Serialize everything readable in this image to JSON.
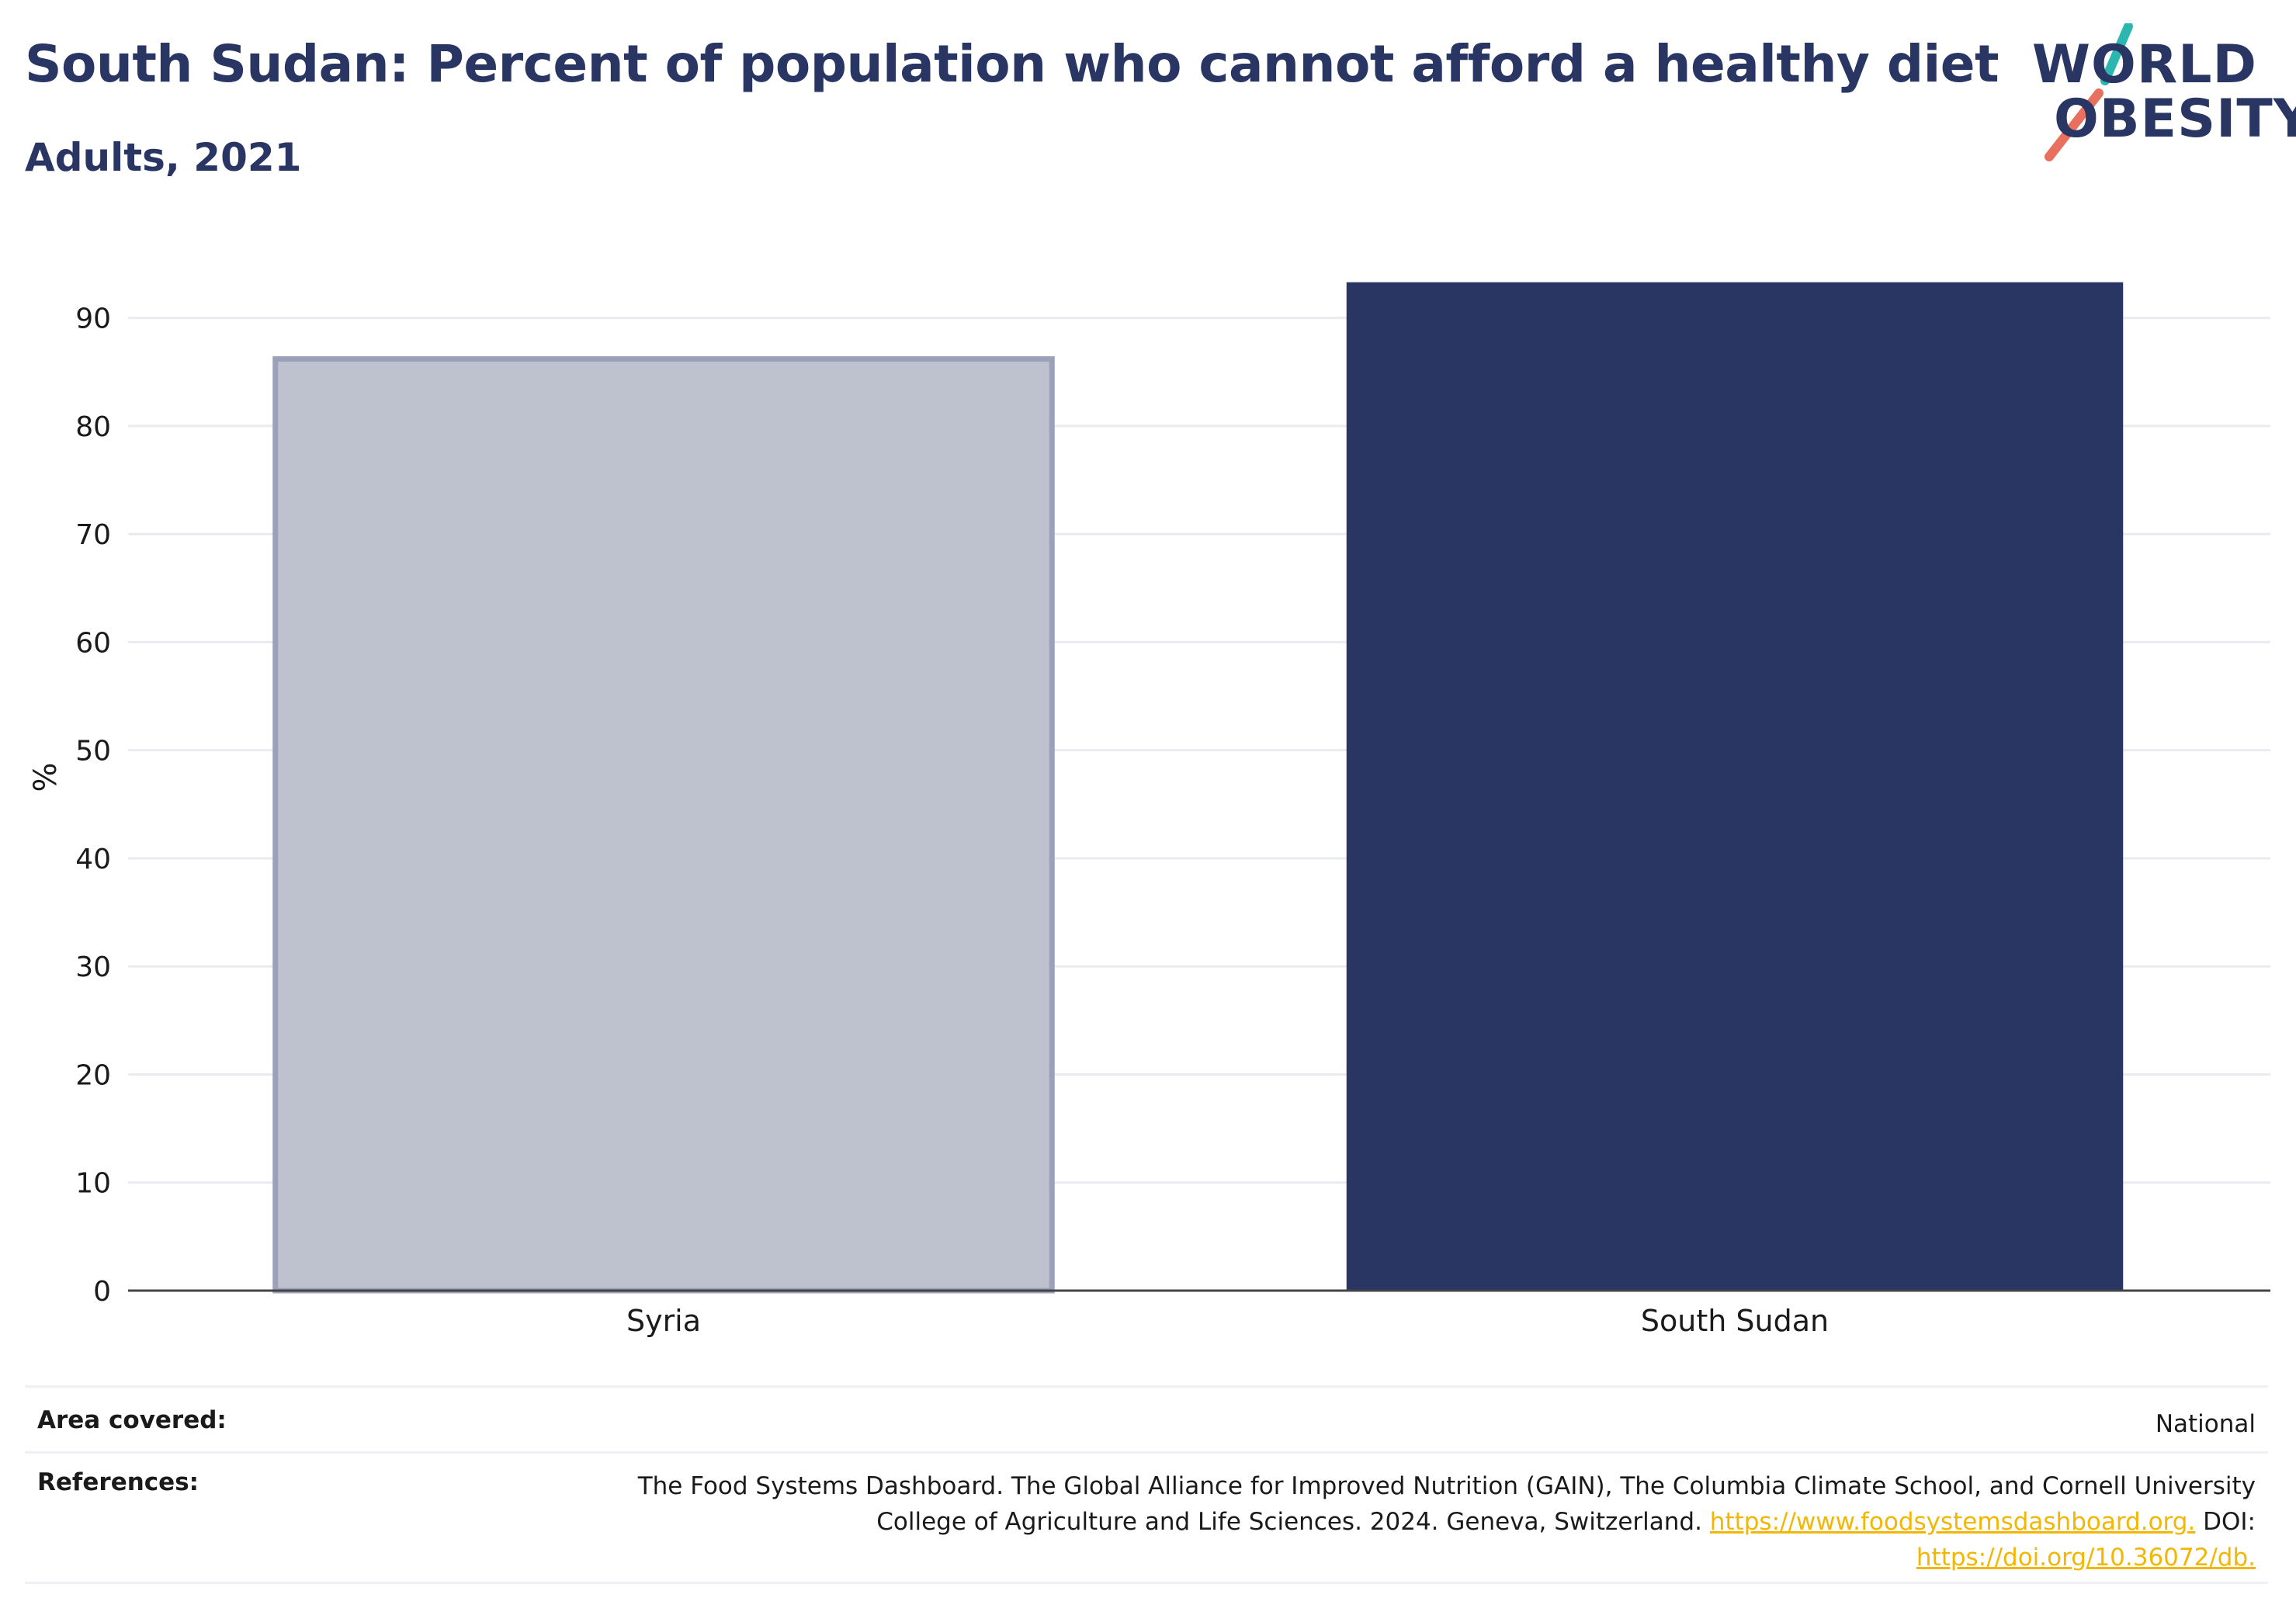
{
  "header": {
    "title": "South Sudan: Percent of population who cannot afford a healthy diet",
    "subtitle": "Adults, 2021"
  },
  "logo": {
    "line1": "WORLD",
    "line2": "OBESITY",
    "colors": {
      "text": "#293562",
      "teal": "#2bb7b0",
      "coral": "#e8705f"
    }
  },
  "chart_data": {
    "type": "bar",
    "categories": [
      "Syria",
      "South Sudan"
    ],
    "values": [
      86.2,
      93.3
    ],
    "xlabel": "",
    "ylabel": "%",
    "ylim": [
      0,
      95
    ],
    "yticks": [
      0,
      10,
      20,
      30,
      40,
      50,
      60,
      70,
      80,
      90
    ],
    "grid": true,
    "colors": {
      "highlight": "#293562",
      "other_fill": "#bec2ce",
      "other_stroke": "#9aa1b8"
    },
    "highlight_category": "South Sudan"
  },
  "metadata": {
    "area_label": "Area covered:",
    "area_value": "National",
    "references_label": "References:",
    "references_line1": "The Food Systems Dashboard. The Global Alliance for Improved Nutrition (GAIN), The Columbia Climate School, and Cornell University",
    "references_line2": "College of Agriculture and Life Sciences. 2024. Geneva, Switzerland.",
    "references_link1": "https://www.foodsystemsdashboard.org.",
    "references_doi_prefix": "DOI:",
    "references_link2": "https://doi.org/10.36072/db."
  }
}
